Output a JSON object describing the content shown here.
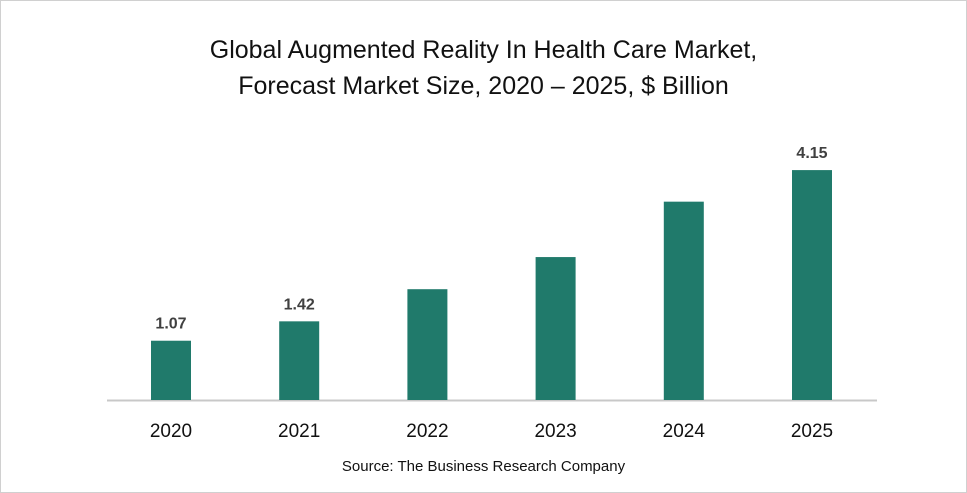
{
  "chart_data": {
    "type": "bar",
    "title_line1": "Global Augmented Reality In Health Care Market,",
    "title_line2": "Forecast Market Size, 2020 – 2025, $ Billion",
    "categories": [
      "2020",
      "2021",
      "2022",
      "2023",
      "2024",
      "2025"
    ],
    "values": [
      1.07,
      1.42,
      2.0,
      2.58,
      3.58,
      4.15
    ],
    "data_labels": [
      "1.07",
      "1.42",
      "",
      "",
      "",
      "4.15"
    ],
    "xlabel": "",
    "ylabel": "",
    "ylim": [
      0,
      4.5
    ],
    "grid": false,
    "bar_color": "#207A6B",
    "source": "Source: The Business Research Company"
  }
}
